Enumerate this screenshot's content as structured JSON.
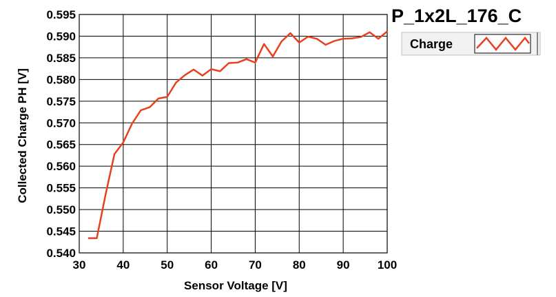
{
  "chart_data": {
    "type": "line",
    "title": "P_1x2L_176_C",
    "xlabel": "Sensor Voltage [V]",
    "ylabel": "Collected Charge PH [V]",
    "xlim": [
      30,
      100
    ],
    "ylim": [
      0.54,
      0.595
    ],
    "xticks": [
      "30",
      "40",
      "50",
      "60",
      "70",
      "80",
      "90",
      "100"
    ],
    "yticks": [
      "0.540",
      "0.545",
      "0.550",
      "0.555",
      "0.560",
      "0.565",
      "0.570",
      "0.575",
      "0.580",
      "0.585",
      "0.590",
      "0.595"
    ],
    "grid": true,
    "legend": "top-right",
    "series": [
      {
        "name": "Charge",
        "color": "#e8401c",
        "x": [
          32,
          34,
          36,
          38,
          40,
          42,
          44,
          46,
          48,
          50,
          52,
          54,
          56,
          58,
          60,
          62,
          64,
          66,
          68,
          70,
          72,
          74,
          76,
          78,
          80,
          82,
          84,
          86,
          88,
          90,
          92,
          94,
          96,
          98,
          100
        ],
        "y": [
          0.5434,
          0.5434,
          0.5535,
          0.5628,
          0.5655,
          0.5698,
          0.5729,
          0.5736,
          0.5756,
          0.576,
          0.5793,
          0.581,
          0.5823,
          0.5809,
          0.5824,
          0.5819,
          0.5838,
          0.5839,
          0.5847,
          0.5839,
          0.5882,
          0.5853,
          0.5888,
          0.5907,
          0.5885,
          0.5899,
          0.5894,
          0.588,
          0.5889,
          0.5894,
          0.5895,
          0.5898,
          0.5909,
          0.5894,
          0.5911
        ]
      }
    ]
  }
}
